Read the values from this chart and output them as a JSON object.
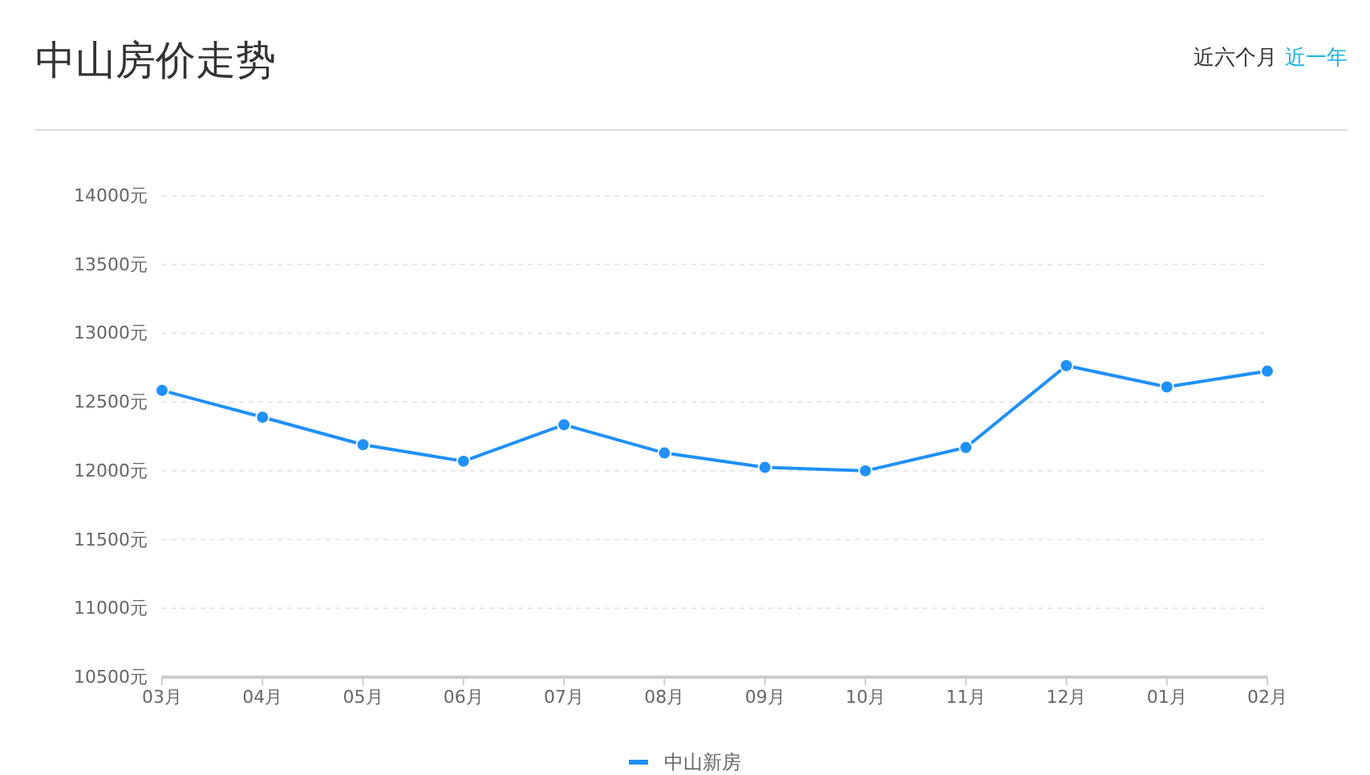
{
  "chart_data": {
    "type": "line",
    "title": "中山房价走势",
    "annotations": [
      "近六个月",
      "近一年"
    ],
    "categories": [
      "03月",
      "04月",
      "05月",
      "06月",
      "07月",
      "08月",
      "09月",
      "10月",
      "11月",
      "12月",
      "01月",
      "02月"
    ],
    "series": [
      {
        "name": "中山新房",
        "color": "#1e90ff",
        "values": [
          12585,
          12390,
          12190,
          12070,
          12335,
          12130,
          12025,
          12000,
          12170,
          12765,
          12610,
          12725
        ]
      }
    ],
    "ylim": [
      10500,
      14000
    ],
    "yticks": [
      {
        "value": 10500,
        "label": "10500元"
      },
      {
        "value": 11000,
        "label": "11000元"
      },
      {
        "value": 11500,
        "label": "11500元"
      },
      {
        "value": 12000,
        "label": "12000元"
      },
      {
        "value": 12500,
        "label": "12500元"
      },
      {
        "value": 13000,
        "label": "13000元"
      },
      {
        "value": 13500,
        "label": "13500元"
      },
      {
        "value": 14000,
        "label": "14000元"
      }
    ],
    "grid": "y",
    "legend": "bottom",
    "marker": "circle",
    "line_style": "solid"
  }
}
